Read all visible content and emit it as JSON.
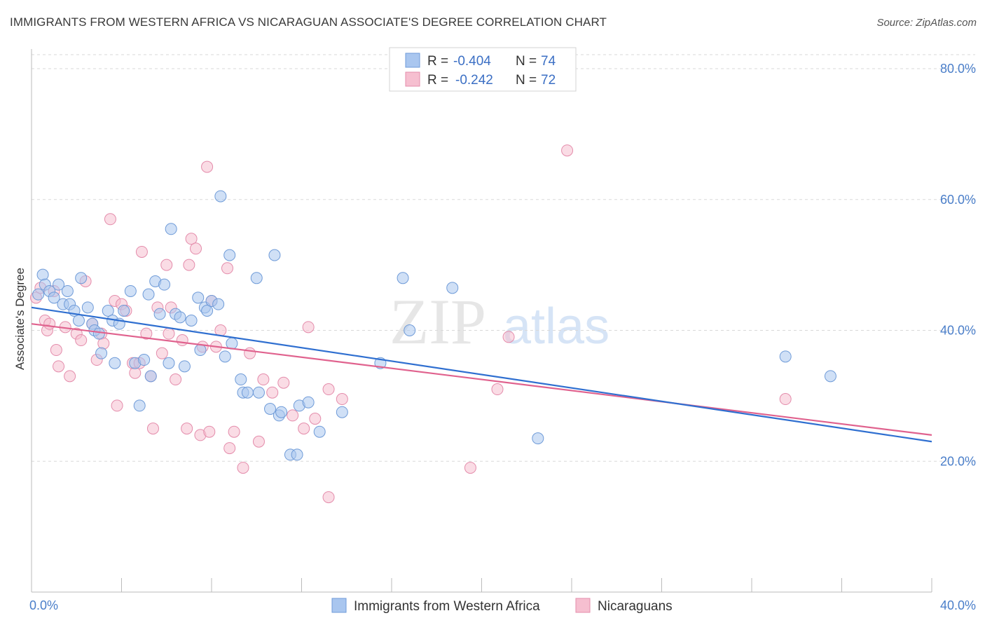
{
  "title": "IMMIGRANTS FROM WESTERN AFRICA VS NICARAGUAN ASSOCIATE'S DEGREE CORRELATION CHART",
  "source": "Source: ZipAtlas.com",
  "watermark": {
    "zip": "ZIP",
    "atlas": "atlas"
  },
  "colors": {
    "blue_fill": "#a9c6ef",
    "blue_stroke": "#6f9bd8",
    "blue_line": "#2f6fd0",
    "pink_fill": "#f6bfd0",
    "pink_stroke": "#e48cab",
    "pink_line": "#e0628e",
    "axis_label": "#4a7ec9",
    "grid": "#d9d9d9"
  },
  "legend_top": [
    {
      "r_label": "R =",
      "r_value": "-0.404",
      "n_label": "N =",
      "n_value": "74"
    },
    {
      "r_label": "R =",
      "r_value": "-0.242",
      "n_label": "N =",
      "n_value": "72"
    }
  ],
  "chart_data": {
    "type": "scatter",
    "xlabel": "",
    "ylabel": "Associate's Degree",
    "xlim": [
      0,
      40
    ],
    "ylim": [
      0,
      83
    ],
    "x_tick_labels": [
      "0.0%",
      "40.0%"
    ],
    "y_ticks": [
      20,
      40,
      60,
      80
    ],
    "y_tick_labels": [
      "20.0%",
      "40.0%",
      "60.0%",
      "80.0%"
    ],
    "grid": "horizontal dashed",
    "legend_position": "bottom",
    "series": [
      {
        "name": "Immigrants from Western Africa",
        "trend": {
          "x": [
            0,
            40
          ],
          "y": [
            43.5,
            23.0
          ]
        },
        "points": [
          [
            0.3,
            45.5
          ],
          [
            0.5,
            48.5
          ],
          [
            0.6,
            47
          ],
          [
            0.8,
            46
          ],
          [
            1.0,
            45
          ],
          [
            1.2,
            47
          ],
          [
            1.4,
            44
          ],
          [
            1.6,
            46
          ],
          [
            1.7,
            44
          ],
          [
            1.9,
            43
          ],
          [
            2.1,
            41.5
          ],
          [
            2.2,
            48
          ],
          [
            2.5,
            43.5
          ],
          [
            2.7,
            41
          ],
          [
            2.8,
            40
          ],
          [
            3.0,
            39.5
          ],
          [
            3.1,
            36.5
          ],
          [
            3.4,
            43
          ],
          [
            3.6,
            41.5
          ],
          [
            3.7,
            35
          ],
          [
            3.9,
            41
          ],
          [
            4.1,
            43
          ],
          [
            4.4,
            46
          ],
          [
            4.6,
            35
          ],
          [
            4.8,
            28.5
          ],
          [
            5.0,
            35.5
          ],
          [
            5.2,
            45.5
          ],
          [
            5.3,
            33
          ],
          [
            5.5,
            47.5
          ],
          [
            5.7,
            42.5
          ],
          [
            5.9,
            47
          ],
          [
            6.1,
            35
          ],
          [
            6.2,
            55.5
          ],
          [
            6.4,
            42.5
          ],
          [
            6.6,
            42
          ],
          [
            6.8,
            34.5
          ],
          [
            7.1,
            41.5
          ],
          [
            7.4,
            45
          ],
          [
            7.5,
            37
          ],
          [
            7.7,
            43.5
          ],
          [
            7.8,
            43
          ],
          [
            8.0,
            44.5
          ],
          [
            8.3,
            44
          ],
          [
            8.4,
            60.5
          ],
          [
            8.6,
            36
          ],
          [
            8.8,
            51.5
          ],
          [
            8.9,
            38
          ],
          [
            9.3,
            32.5
          ],
          [
            9.4,
            30.5
          ],
          [
            9.6,
            30.5
          ],
          [
            10.0,
            48
          ],
          [
            10.1,
            30.5
          ],
          [
            10.6,
            28
          ],
          [
            10.8,
            51.5
          ],
          [
            11.0,
            27
          ],
          [
            11.1,
            27.5
          ],
          [
            11.5,
            21
          ],
          [
            11.8,
            21
          ],
          [
            11.9,
            28.5
          ],
          [
            12.3,
            29
          ],
          [
            12.8,
            24.5
          ],
          [
            13.8,
            27.5
          ],
          [
            15.5,
            35
          ],
          [
            16.5,
            48
          ],
          [
            16.8,
            40
          ],
          [
            18.7,
            46.5
          ],
          [
            22.5,
            23.5
          ],
          [
            33.5,
            36
          ],
          [
            35.5,
            33
          ]
        ]
      },
      {
        "name": "Nicaraguans",
        "trend": {
          "x": [
            0,
            40
          ],
          "y": [
            41.0,
            24.0
          ]
        },
        "points": [
          [
            0.2,
            45
          ],
          [
            0.4,
            46.5
          ],
          [
            0.6,
            41.5
          ],
          [
            0.7,
            40
          ],
          [
            0.8,
            41
          ],
          [
            1.0,
            46
          ],
          [
            1.1,
            37
          ],
          [
            1.2,
            34.5
          ],
          [
            1.5,
            40.5
          ],
          [
            1.7,
            33
          ],
          [
            2.0,
            39.5
          ],
          [
            2.2,
            38.5
          ],
          [
            2.4,
            47.5
          ],
          [
            2.7,
            41
          ],
          [
            2.9,
            35.5
          ],
          [
            3.1,
            39.5
          ],
          [
            3.2,
            38
          ],
          [
            3.5,
            57
          ],
          [
            3.7,
            44.5
          ],
          [
            3.8,
            28.5
          ],
          [
            4.0,
            44
          ],
          [
            4.2,
            43
          ],
          [
            4.5,
            35
          ],
          [
            4.6,
            33.5
          ],
          [
            4.8,
            35
          ],
          [
            4.9,
            52
          ],
          [
            5.1,
            39.5
          ],
          [
            5.3,
            33
          ],
          [
            5.4,
            25
          ],
          [
            5.6,
            43.5
          ],
          [
            5.8,
            36.5
          ],
          [
            6.0,
            50
          ],
          [
            6.1,
            39.5
          ],
          [
            6.2,
            43.5
          ],
          [
            6.4,
            32.5
          ],
          [
            6.7,
            38.5
          ],
          [
            6.9,
            25
          ],
          [
            7.0,
            50
          ],
          [
            7.1,
            54
          ],
          [
            7.3,
            52.5
          ],
          [
            7.5,
            24
          ],
          [
            7.6,
            37.5
          ],
          [
            7.8,
            65
          ],
          [
            7.9,
            24.5
          ],
          [
            8.0,
            44.5
          ],
          [
            8.2,
            37.5
          ],
          [
            8.4,
            40
          ],
          [
            8.7,
            49.5
          ],
          [
            8.8,
            22
          ],
          [
            9.0,
            24.5
          ],
          [
            9.4,
            19
          ],
          [
            9.7,
            36.5
          ],
          [
            10.1,
            23
          ],
          [
            10.3,
            32.5
          ],
          [
            10.7,
            30.5
          ],
          [
            11.2,
            32
          ],
          [
            11.6,
            27
          ],
          [
            12.1,
            25
          ],
          [
            12.3,
            40.5
          ],
          [
            12.6,
            26.5
          ],
          [
            13.2,
            31
          ],
          [
            13.2,
            14.5
          ],
          [
            13.8,
            29.5
          ],
          [
            19.5,
            19
          ],
          [
            20.7,
            31
          ],
          [
            21.2,
            39
          ],
          [
            23.8,
            67.5
          ],
          [
            33.5,
            29.5
          ]
        ]
      }
    ]
  }
}
